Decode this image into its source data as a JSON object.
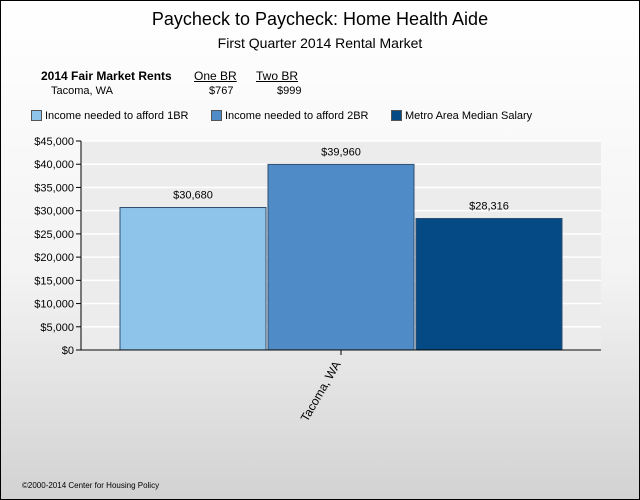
{
  "title": "Paycheck to Paycheck: Home Health Aide",
  "subtitle": "First Quarter 2014 Rental Market",
  "fmr_table": {
    "label": "2014 Fair Market Rents",
    "col1": "One BR",
    "col2": "Two BR",
    "location": "Tacoma, WA",
    "one_br": "$767",
    "two_br": "$999"
  },
  "legend": [
    {
      "label": "Income needed to afford 1BR",
      "color": "#8ec4ea"
    },
    {
      "label": "Income needed to afford 2BR",
      "color": "#4f8bc6"
    },
    {
      "label": "Metro Area Median Salary",
      "color": "#054a85"
    }
  ],
  "chart_data": {
    "type": "bar",
    "categories": [
      "Tacoma, WA"
    ],
    "series": [
      {
        "name": "Income needed to afford 1BR",
        "values": [
          30680
        ],
        "color": "#8ec4ea"
      },
      {
        "name": "Income needed to afford 2BR",
        "values": [
          39960
        ],
        "color": "#4f8bc6"
      },
      {
        "name": "Metro Area Median Salary",
        "values": [
          28316
        ],
        "color": "#054a85"
      }
    ],
    "data_labels": [
      "$30,680",
      "$39,960",
      "$28,316"
    ],
    "ylim": [
      0,
      45000
    ],
    "yticks": [
      0,
      5000,
      10000,
      15000,
      20000,
      25000,
      30000,
      35000,
      40000,
      45000
    ],
    "ytick_labels": [
      "$0",
      "$5,000",
      "$10,000",
      "$15,000",
      "$20,000",
      "$25,000",
      "$30,000",
      "$35,000",
      "$40,000",
      "$45,000"
    ],
    "grid": true,
    "legend_position": "top"
  },
  "copyright": "©2000-2014 Center for Housing Policy"
}
